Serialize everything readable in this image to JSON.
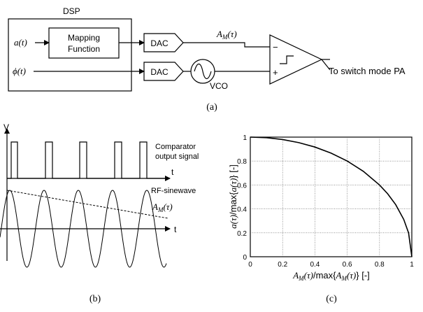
{
  "panel_a": {
    "dsp_label": "DSP",
    "input_a": "a(t)",
    "input_phi": "ϕ(t)",
    "mapping_line1": "Mapping",
    "mapping_line2": "Function",
    "dac_top": "DAC",
    "dac_bottom": "DAC",
    "am_label": "A",
    "am_sub": "M",
    "am_arg": "(τ)",
    "minus_sign": "−",
    "plus_sign": "+",
    "vco_label": "VCO",
    "output_label": "To switch mode PA",
    "caption": "(a)"
  },
  "panel_b": {
    "v_label": "V",
    "t_label_top": "t",
    "t_label_bottom": "t",
    "comparator_line1": "Comparator",
    "comparator_line2": "output signal",
    "rf_label": "RF-sinewave",
    "am_label": "A",
    "am_sub": "M",
    "am_arg": "(τ)",
    "caption": "(b)"
  },
  "panel_c": {
    "ylabel": "a(τ)/max{a(τ)} [-]",
    "xlabel": "A_M(τ)/max{A_M(τ)} [-]",
    "caption": "(c)"
  },
  "chart_data": {
    "type": "line",
    "series": [
      {
        "x": [
          0,
          0.1,
          0.2,
          0.3,
          0.4,
          0.5,
          0.6,
          0.7,
          0.8,
          0.85,
          0.9,
          0.95,
          0.98,
          1.0
        ],
        "y": [
          1.0,
          0.995,
          0.98,
          0.954,
          0.917,
          0.866,
          0.8,
          0.714,
          0.6,
          0.527,
          0.436,
          0.312,
          0.199,
          0.0
        ]
      }
    ],
    "xlabel": "A_M(τ)/max{A_M(τ)} [-]",
    "ylabel": "a(τ)/max{a(τ)} [-]",
    "xlim": [
      0,
      1
    ],
    "ylim": [
      0,
      1
    ],
    "xticks": [
      "0",
      "0.2",
      "0.4",
      "0.6",
      "0.8",
      "1"
    ],
    "yticks": [
      "0",
      "0.2",
      "0.4",
      "0.6",
      "0.8",
      "1"
    ],
    "grid": true,
    "title": ""
  }
}
